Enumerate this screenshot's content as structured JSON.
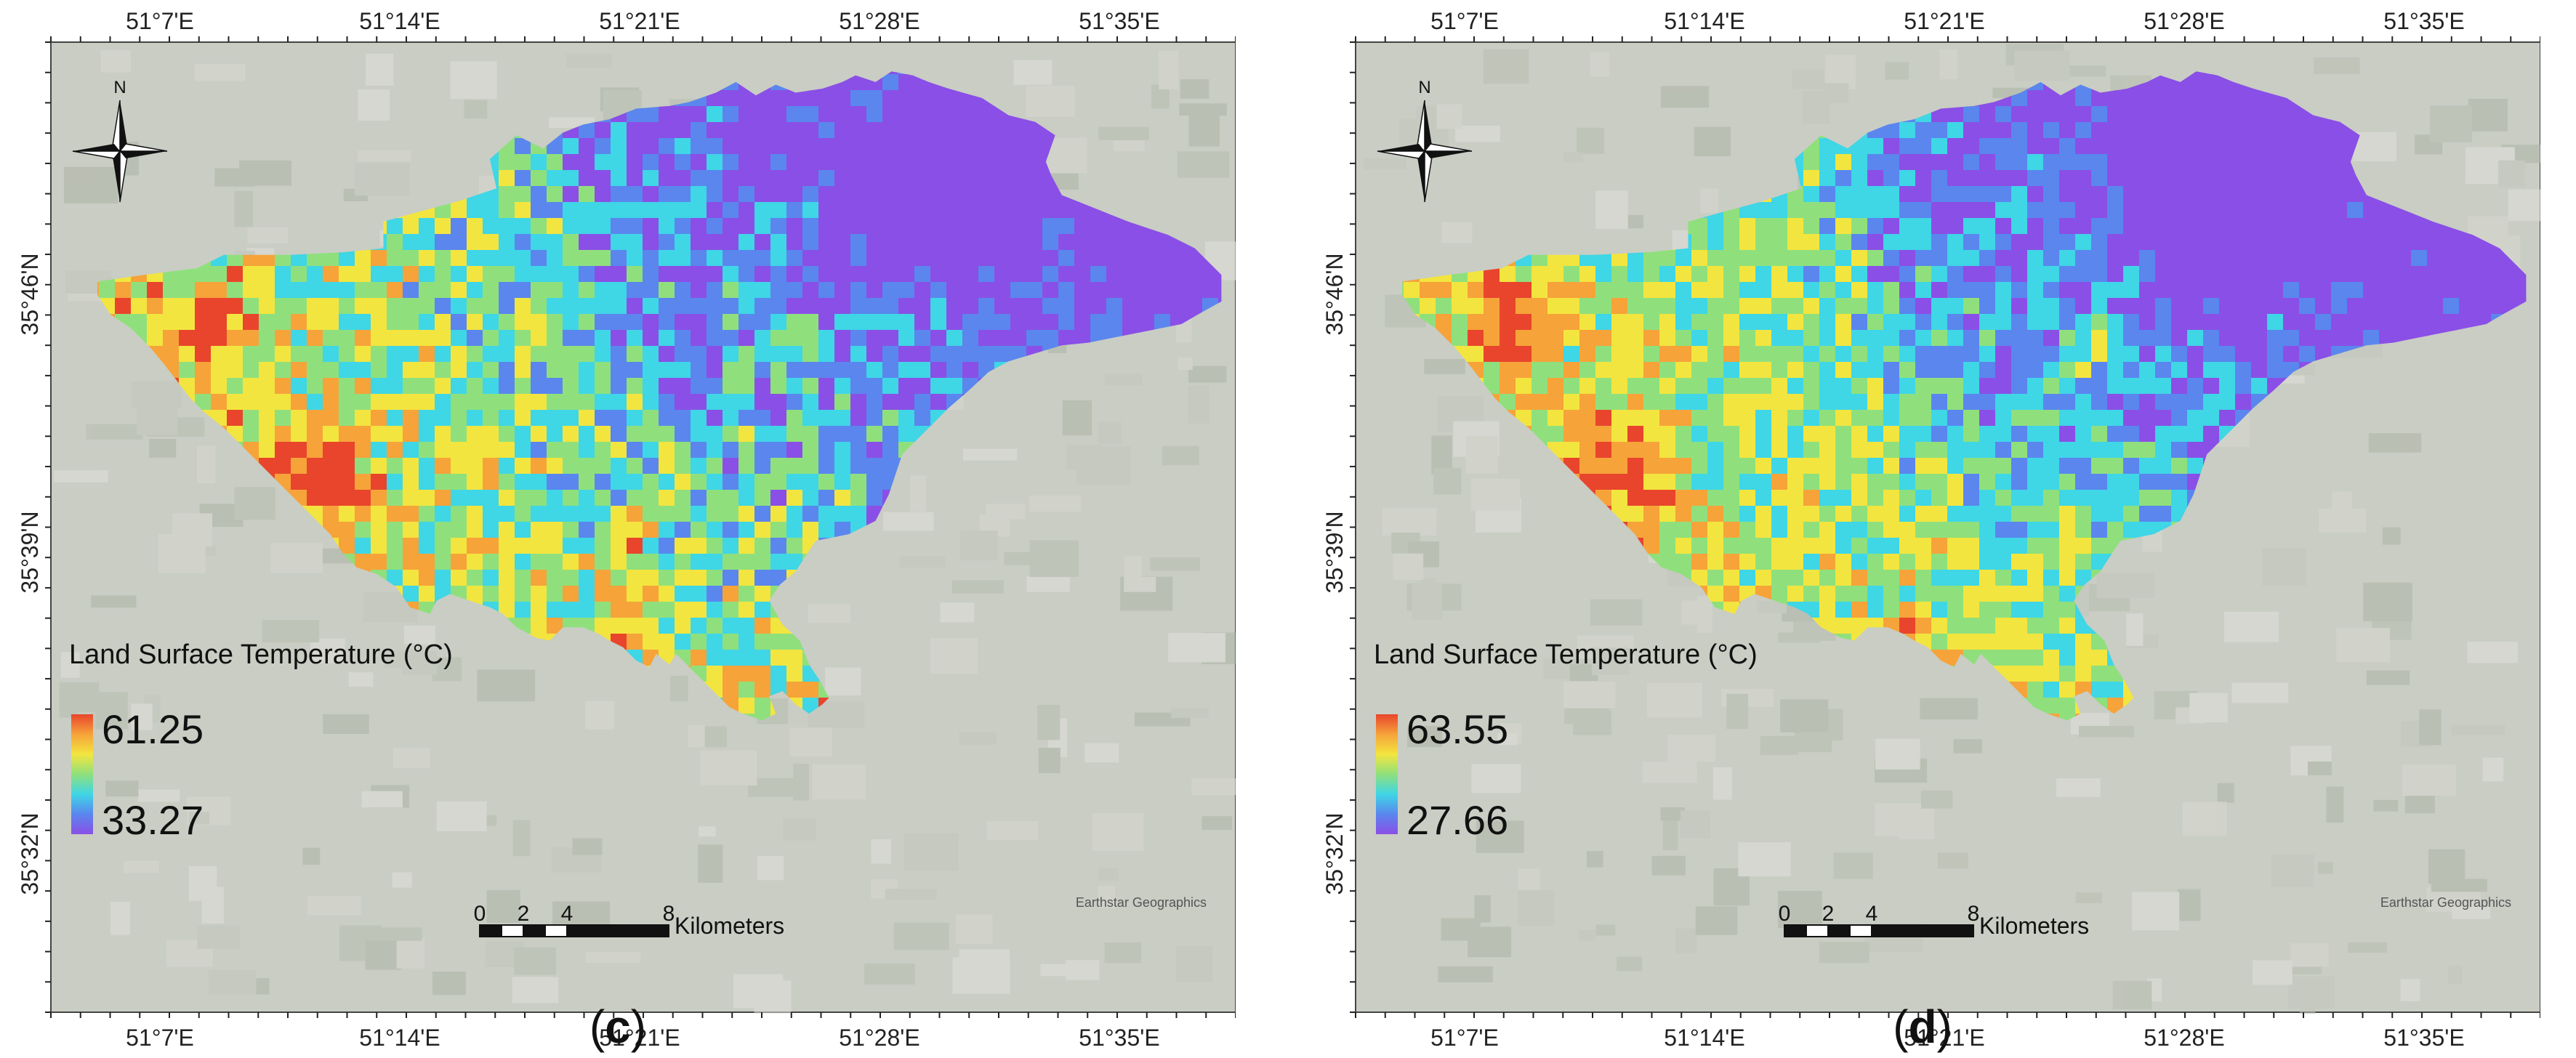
{
  "panels": [
    {
      "letter": "c",
      "legend": {
        "title": "Land Surface Temperature (°C)",
        "max": "61.25",
        "min": "33.27",
        "colors": [
          "#e8452c",
          "#f6a33a",
          "#f3e53f",
          "#8fe07c",
          "#3fd6e6",
          "#5a86ee",
          "#8a4fe6"
        ]
      },
      "lon_labels": [
        "51°7'E",
        "51°14'E",
        "51°21'E",
        "51°28'E",
        "51°35'E"
      ],
      "lat_labels": [
        "35°46'N",
        "35°39'N",
        "35°32'N"
      ],
      "north_label": "N",
      "scalebar": {
        "ticks": [
          "0",
          "2",
          "4",
          "8"
        ],
        "unit": "Kilometers"
      },
      "attribution": "Earthstar Geographics",
      "hotness": 0.55
    },
    {
      "letter": "d",
      "legend": {
        "title": "Land Surface Temperature (°C)",
        "max": "63.55",
        "min": "27.66",
        "colors": [
          "#e8452c",
          "#f6a33a",
          "#f3e53f",
          "#8fe07c",
          "#3fd6e6",
          "#5a86ee",
          "#8a4fe6"
        ]
      },
      "lon_labels": [
        "51°7'E",
        "51°14'E",
        "51°21'E",
        "51°28'E",
        "51°35'E"
      ],
      "lat_labels": [
        "35°46'N",
        "35°39'N",
        "35°32'N"
      ],
      "north_label": "N",
      "scalebar": {
        "ticks": [
          "0",
          "2",
          "4",
          "8"
        ],
        "unit": "Kilometers"
      },
      "attribution": "Earthstar Geographics",
      "hotness": 0.45
    }
  ]
}
